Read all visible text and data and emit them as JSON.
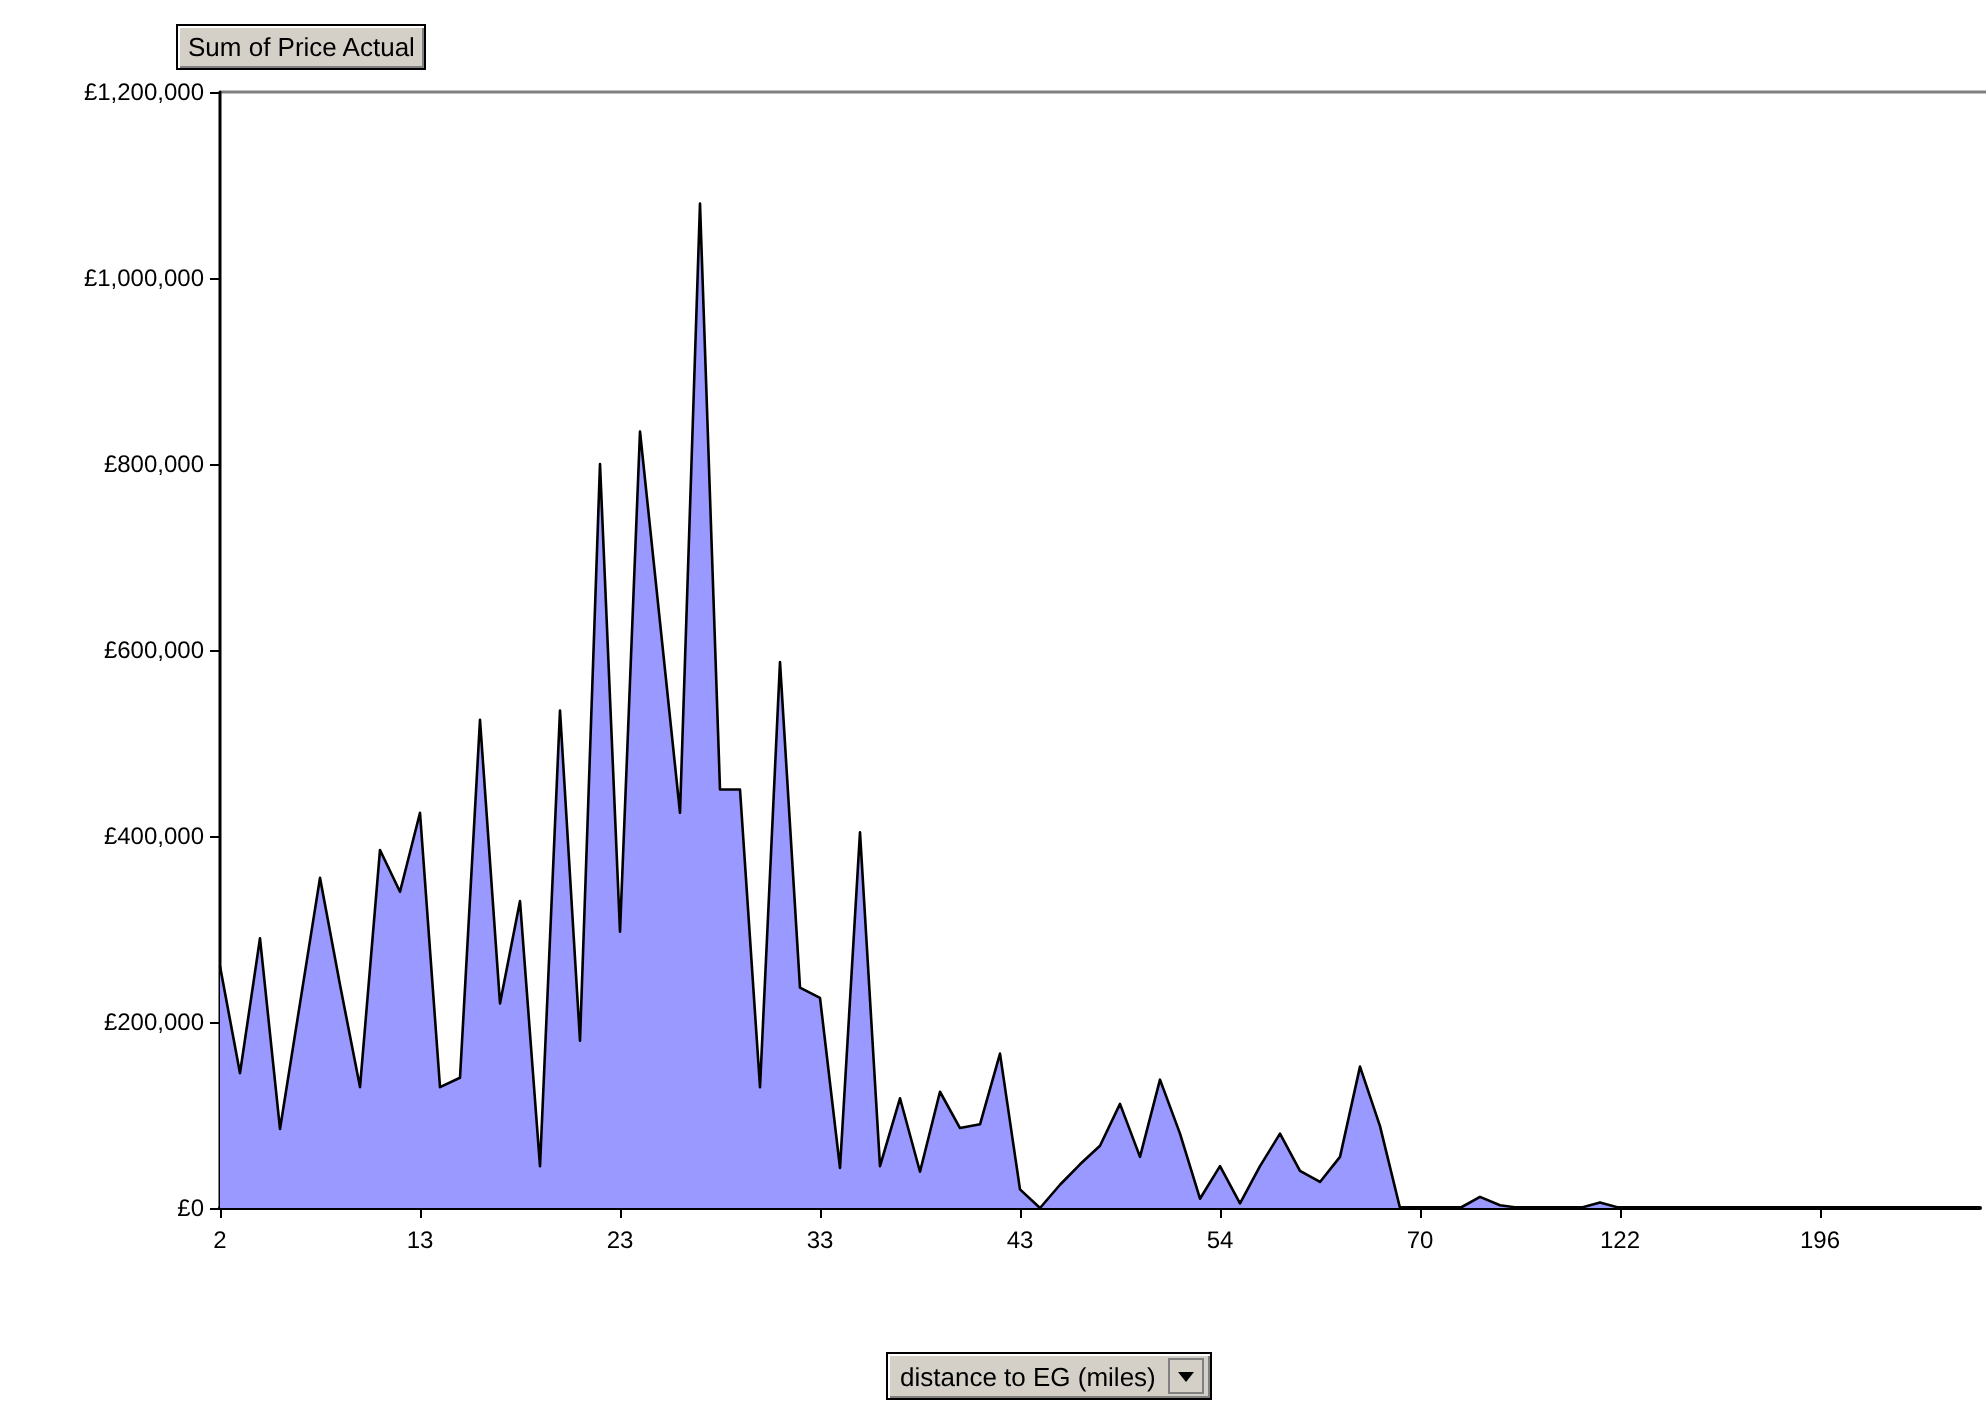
{
  "chart_data": {
    "type": "area",
    "ylabel": "Sum of Price Actual",
    "xlabel": "distance to EG (miles)",
    "categories": [
      "2",
      null,
      null,
      null,
      null,
      null,
      null,
      null,
      null,
      null,
      "13",
      null,
      null,
      null,
      null,
      null,
      null,
      null,
      null,
      null,
      "23",
      null,
      null,
      null,
      null,
      null,
      null,
      null,
      null,
      null,
      "33",
      null,
      null,
      null,
      null,
      null,
      null,
      null,
      null,
      null,
      "43",
      null,
      null,
      null,
      null,
      null,
      null,
      null,
      null,
      null,
      "54",
      null,
      null,
      null,
      null,
      null,
      null,
      null,
      null,
      null,
      "70",
      null,
      null,
      null,
      null,
      null,
      null,
      null,
      null,
      null,
      "122",
      null,
      null,
      null,
      null,
      null,
      null,
      null,
      null,
      null,
      "196",
      null,
      null,
      null,
      null,
      null,
      null,
      null,
      null
    ],
    "values": [
      260000,
      145000,
      290000,
      85000,
      220000,
      355000,
      240000,
      130000,
      385000,
      340000,
      425000,
      130000,
      140000,
      525000,
      220000,
      330000,
      45000,
      535000,
      180000,
      800000,
      297000,
      835000,
      630000,
      425000,
      1080000,
      450000,
      450000,
      130000,
      587000,
      237000,
      226000,
      43000,
      404000,
      45000,
      118000,
      39000,
      125000,
      86000,
      90000,
      166000,
      20000,
      0,
      25000,
      47000,
      67000,
      112000,
      55000,
      138000,
      80000,
      10000,
      45000,
      5000,
      45000,
      80000,
      40000,
      28000,
      55000,
      152000,
      88000,
      0,
      0,
      0,
      0,
      12000,
      3000,
      0,
      0,
      0,
      0,
      6000,
      0,
      0,
      0,
      0,
      0,
      0,
      0,
      0,
      0,
      0,
      0,
      0,
      0,
      0,
      0,
      0,
      0,
      0,
      0
    ],
    "color": "#9999ff",
    "ylim": [
      0,
      1200000
    ],
    "yticks": [
      {
        "value": 0,
        "label": "£0"
      },
      {
        "value": 200000,
        "label": "£200,000"
      },
      {
        "value": 400000,
        "label": "£400,000"
      },
      {
        "value": 600000,
        "label": "£600,000"
      },
      {
        "value": 800000,
        "label": "£800,000"
      },
      {
        "value": 1000000,
        "label": "£1,000,000"
      },
      {
        "value": 1200000,
        "label": "£1,200,000"
      }
    ],
    "grid": false,
    "marker": "none"
  }
}
